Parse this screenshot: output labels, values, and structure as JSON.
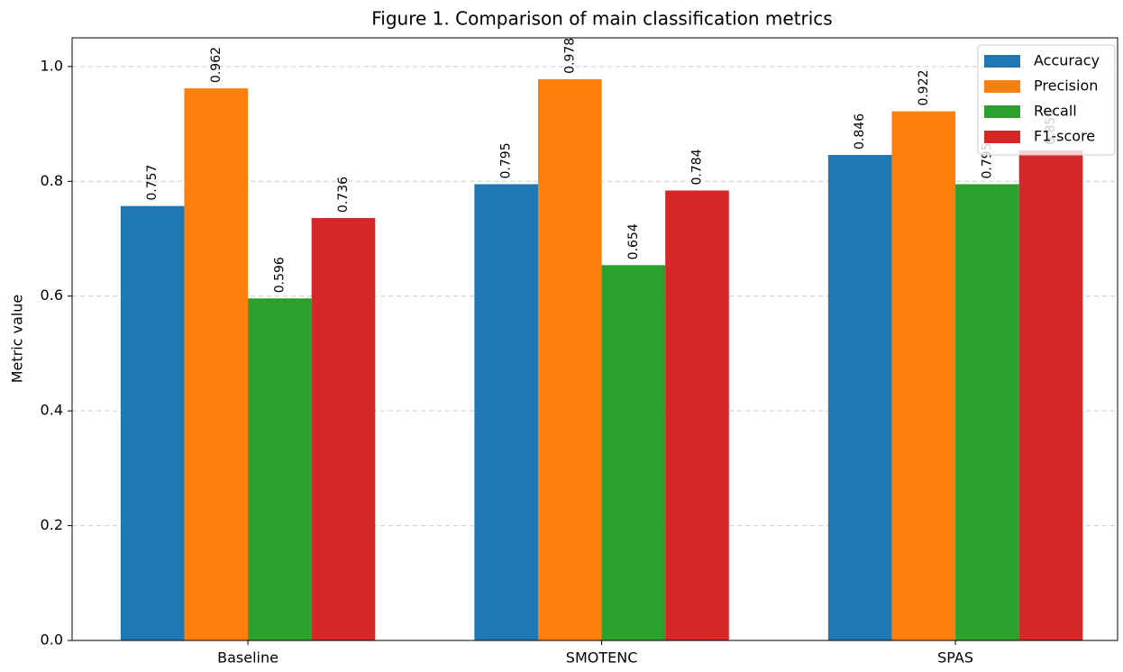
{
  "chart_data": {
    "type": "bar",
    "title": "Figure 1. Comparison of main classification metrics",
    "y_label": "Metric value",
    "categories": [
      "Baseline",
      "SMOTENC",
      "SPAS"
    ],
    "series": [
      {
        "name": "Accuracy",
        "color": "#1f77b4",
        "values": [
          0.757,
          0.795,
          0.846
        ]
      },
      {
        "name": "Precision",
        "color": "#ff7f0e",
        "values": [
          0.962,
          0.978,
          0.922
        ]
      },
      {
        "name": "Recall",
        "color": "#2ca02c",
        "values": [
          0.596,
          0.654,
          0.795
        ]
      },
      {
        "name": "F1-score",
        "color": "#d62728",
        "values": [
          0.736,
          0.784,
          0.854
        ]
      }
    ],
    "ylim": [
      0,
      1.05
    ],
    "yticks": [
      {
        "value": 0,
        "label": "0.0"
      },
      0.2,
      0.4,
      0.6,
      0.8,
      {
        "value": 1,
        "label": "1.0"
      }
    ],
    "grid": true,
    "legend": "upper right"
  }
}
